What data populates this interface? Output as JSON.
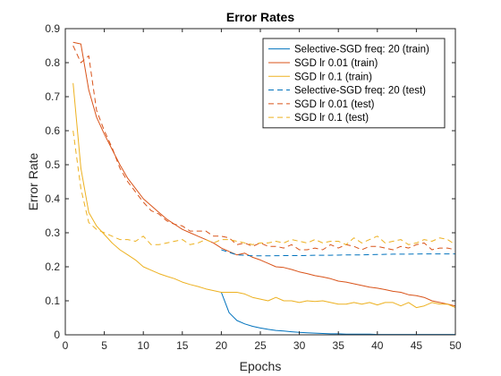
{
  "chart_data": {
    "type": "line",
    "title": "Error Rates",
    "xlabel": "Epochs",
    "ylabel": "Error Rate",
    "xlim": [
      0,
      50
    ],
    "ylim": [
      0,
      0.9
    ],
    "xticks": [
      "0",
      "5",
      "10",
      "15",
      "20",
      "25",
      "30",
      "35",
      "40",
      "45",
      "50"
    ],
    "yticks": [
      "0",
      "0.1",
      "0.2",
      "0.3",
      "0.4",
      "0.5",
      "0.6",
      "0.7",
      "0.8",
      "0.9"
    ],
    "grid": false,
    "legend_position": "top-right",
    "series": [
      {
        "name": "Selective-SGD freq: 20 (train)",
        "color": "#0072BD",
        "dash": "solid",
        "x": [
          20,
          21,
          22,
          23,
          24,
          25,
          26,
          27,
          28,
          29,
          30,
          31,
          32,
          33,
          34,
          35,
          36,
          37,
          38,
          39,
          40,
          41,
          42,
          43,
          44,
          45,
          46,
          47,
          48,
          49,
          50
        ],
        "y": [
          0.125,
          0.065,
          0.042,
          0.032,
          0.025,
          0.02,
          0.016,
          0.013,
          0.011,
          0.009,
          0.007,
          0.006,
          0.005,
          0.004,
          0.003,
          0.003,
          0.002,
          0.002,
          0.002,
          0.002,
          0.001,
          0.001,
          0.001,
          0.001,
          0.001,
          0.001,
          0.001,
          0.001,
          0.001,
          0.001,
          0.001
        ]
      },
      {
        "name": "SGD lr 0.01 (train)",
        "color": "#D95319",
        "dash": "solid",
        "x": [
          1,
          2,
          3,
          4,
          5,
          6,
          7,
          8,
          9,
          10,
          11,
          12,
          13,
          14,
          15,
          16,
          17,
          18,
          19,
          20,
          21,
          22,
          23,
          24,
          25,
          26,
          27,
          28,
          29,
          30,
          31,
          32,
          33,
          34,
          35,
          36,
          37,
          38,
          39,
          40,
          41,
          42,
          43,
          44,
          45,
          46,
          47,
          48,
          49,
          50
        ],
        "y": [
          0.86,
          0.855,
          0.72,
          0.64,
          0.59,
          0.545,
          0.5,
          0.46,
          0.43,
          0.4,
          0.38,
          0.36,
          0.34,
          0.325,
          0.31,
          0.3,
          0.29,
          0.28,
          0.27,
          0.255,
          0.245,
          0.235,
          0.24,
          0.228,
          0.22,
          0.21,
          0.2,
          0.198,
          0.192,
          0.185,
          0.18,
          0.174,
          0.17,
          0.165,
          0.158,
          0.155,
          0.15,
          0.145,
          0.14,
          0.137,
          0.133,
          0.128,
          0.125,
          0.118,
          0.115,
          0.11,
          0.1,
          0.095,
          0.09,
          0.085
        ]
      },
      {
        "name": "SGD lr 0.1 (train)",
        "color": "#EDB120",
        "dash": "solid",
        "x": [
          1,
          2,
          3,
          4,
          5,
          6,
          7,
          8,
          9,
          10,
          11,
          12,
          13,
          14,
          15,
          16,
          17,
          18,
          19,
          20,
          21,
          22,
          23,
          24,
          25,
          26,
          27,
          28,
          29,
          30,
          31,
          32,
          33,
          34,
          35,
          36,
          37,
          38,
          39,
          40,
          41,
          42,
          43,
          44,
          45,
          46,
          47,
          48,
          49,
          50
        ],
        "y": [
          0.74,
          0.49,
          0.36,
          0.32,
          0.295,
          0.27,
          0.25,
          0.235,
          0.22,
          0.2,
          0.19,
          0.18,
          0.172,
          0.165,
          0.155,
          0.148,
          0.142,
          0.135,
          0.13,
          0.125,
          0.125,
          0.125,
          0.12,
          0.11,
          0.105,
          0.1,
          0.11,
          0.1,
          0.1,
          0.095,
          0.1,
          0.098,
          0.1,
          0.095,
          0.09,
          0.09,
          0.095,
          0.09,
          0.095,
          0.088,
          0.095,
          0.095,
          0.085,
          0.095,
          0.08,
          0.085,
          0.095,
          0.09,
          0.09,
          0.08
        ]
      },
      {
        "name": "Selective-SGD freq: 20 (test)",
        "color": "#0072BD",
        "dash": "dashed",
        "x": [
          20,
          22,
          24,
          26,
          28,
          30,
          32,
          34,
          36,
          38,
          40,
          42,
          44,
          46,
          48,
          50
        ],
        "y": [
          0.25,
          0.235,
          0.232,
          0.232,
          0.233,
          0.233,
          0.234,
          0.234,
          0.235,
          0.235,
          0.236,
          0.237,
          0.237,
          0.238,
          0.238,
          0.238
        ]
      },
      {
        "name": "SGD lr 0.01 (test)",
        "color": "#D95319",
        "dash": "dashed",
        "x": [
          1,
          2,
          3,
          4,
          5,
          6,
          7,
          8,
          9,
          10,
          11,
          12,
          13,
          14,
          15,
          16,
          17,
          18,
          19,
          20,
          21,
          22,
          23,
          24,
          25,
          26,
          27,
          28,
          29,
          30,
          31,
          32,
          33,
          34,
          35,
          36,
          37,
          38,
          39,
          40,
          41,
          42,
          43,
          44,
          45,
          46,
          47,
          48,
          49,
          50
        ],
        "y": [
          0.85,
          0.8,
          0.82,
          0.66,
          0.6,
          0.55,
          0.49,
          0.45,
          0.42,
          0.39,
          0.365,
          0.355,
          0.335,
          0.325,
          0.32,
          0.305,
          0.305,
          0.305,
          0.29,
          0.29,
          0.285,
          0.265,
          0.27,
          0.26,
          0.27,
          0.26,
          0.26,
          0.255,
          0.265,
          0.25,
          0.25,
          0.255,
          0.25,
          0.265,
          0.255,
          0.265,
          0.26,
          0.25,
          0.26,
          0.26,
          0.255,
          0.25,
          0.26,
          0.255,
          0.265,
          0.27,
          0.25,
          0.255,
          0.255,
          0.25
        ]
      },
      {
        "name": "SGD lr 0.1 (test)",
        "color": "#EDB120",
        "dash": "dashed",
        "x": [
          1,
          2,
          3,
          4,
          5,
          6,
          7,
          8,
          9,
          10,
          11,
          12,
          13,
          14,
          15,
          16,
          17,
          18,
          19,
          20,
          21,
          22,
          23,
          24,
          25,
          26,
          27,
          28,
          29,
          30,
          31,
          32,
          33,
          34,
          35,
          36,
          37,
          38,
          39,
          40,
          41,
          42,
          43,
          44,
          45,
          46,
          47,
          48,
          49,
          50
        ],
        "y": [
          0.6,
          0.43,
          0.33,
          0.31,
          0.3,
          0.29,
          0.28,
          0.28,
          0.275,
          0.29,
          0.265,
          0.265,
          0.27,
          0.275,
          0.28,
          0.265,
          0.27,
          0.28,
          0.27,
          0.28,
          0.28,
          0.275,
          0.27,
          0.265,
          0.27,
          0.27,
          0.275,
          0.27,
          0.28,
          0.275,
          0.27,
          0.28,
          0.27,
          0.275,
          0.275,
          0.265,
          0.285,
          0.27,
          0.28,
          0.29,
          0.27,
          0.275,
          0.28,
          0.265,
          0.27,
          0.28,
          0.275,
          0.285,
          0.28,
          0.265
        ]
      }
    ]
  }
}
